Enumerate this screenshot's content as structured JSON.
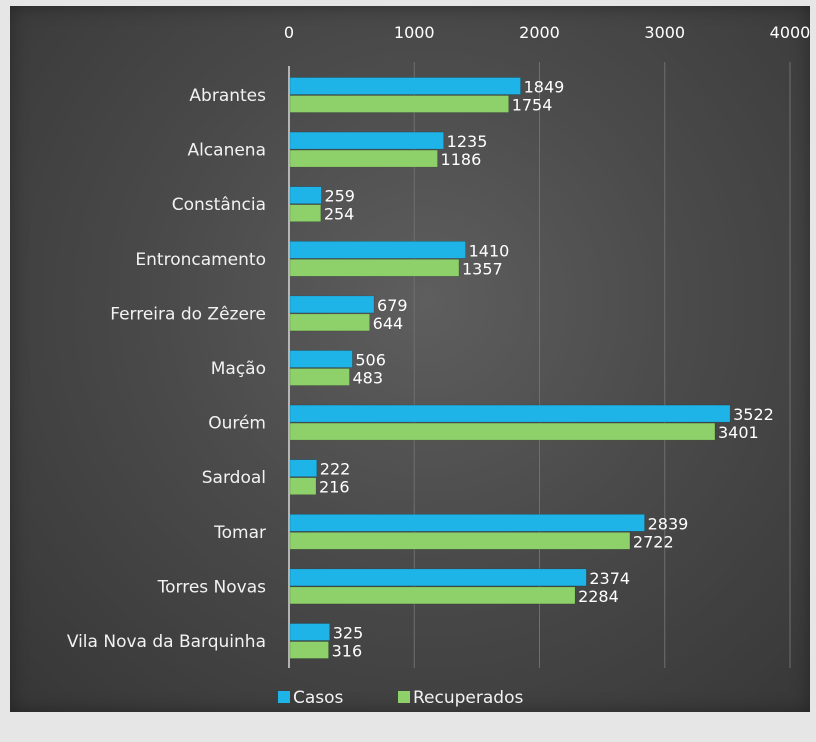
{
  "chart_data": {
    "type": "bar",
    "orientation": "horizontal",
    "categories": [
      "Abrantes",
      "Alcanena",
      "Constância",
      "Entroncamento",
      "Ferreira do Zêzere",
      "Mação",
      "Ourém",
      "Sardoal",
      "Tomar",
      "Torres Novas",
      "Vila Nova da Barquinha"
    ],
    "series": [
      {
        "name": "Casos",
        "color": "#1fb4e8",
        "values": [
          1849,
          1235,
          259,
          1410,
          679,
          506,
          3522,
          222,
          2839,
          2374,
          325
        ]
      },
      {
        "name": "Recuperados",
        "color": "#8ed16b",
        "values": [
          1754,
          1186,
          254,
          1357,
          644,
          483,
          3401,
          216,
          2722,
          2284,
          316
        ]
      }
    ],
    "x_ticks": [
      "0",
      "1000",
      "2000",
      "3000",
      "4000"
    ],
    "xlim": [
      0,
      4000
    ],
    "grid": true,
    "axis_position": "top",
    "legend_position": "bottom"
  }
}
